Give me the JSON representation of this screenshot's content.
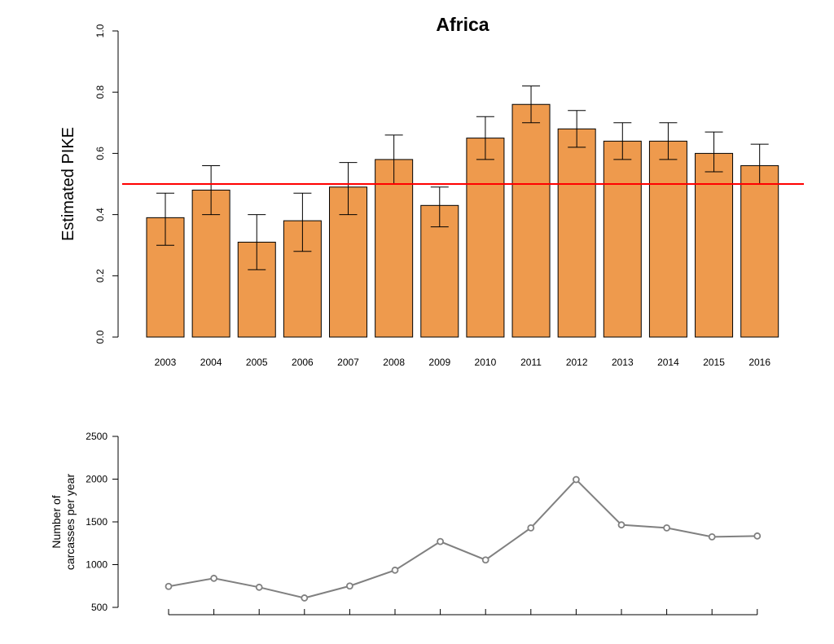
{
  "chart_data": [
    {
      "type": "bar",
      "title": "Africa",
      "xlabel": "",
      "ylabel": "Estimated PIKE",
      "ylim": [
        0,
        1
      ],
      "yticks": [
        0.0,
        0.2,
        0.4,
        0.6,
        0.8,
        1.0
      ],
      "ytick_labels": [
        "0.0",
        "0.2",
        "0.4",
        "0.6",
        "0.8",
        "1.0"
      ],
      "categories": [
        "2003",
        "2004",
        "2005",
        "2006",
        "2007",
        "2008",
        "2009",
        "2010",
        "2011",
        "2012",
        "2013",
        "2014",
        "2015",
        "2016"
      ],
      "values": [
        0.39,
        0.48,
        0.31,
        0.38,
        0.49,
        0.58,
        0.43,
        0.65,
        0.76,
        0.68,
        0.64,
        0.64,
        0.6,
        0.56
      ],
      "error_lower": [
        0.3,
        0.4,
        0.22,
        0.28,
        0.4,
        0.5,
        0.36,
        0.58,
        0.7,
        0.62,
        0.58,
        0.58,
        0.54,
        0.5
      ],
      "error_upper": [
        0.47,
        0.56,
        0.4,
        0.47,
        0.57,
        0.66,
        0.49,
        0.72,
        0.82,
        0.74,
        0.7,
        0.7,
        0.67,
        0.63
      ],
      "reference_line": 0.5,
      "colors": {
        "bar_fill": "#EE9A4D",
        "bar_stroke": "#000000",
        "reference_line": "#FF0000"
      },
      "grid": false
    },
    {
      "type": "line",
      "xlabel": "",
      "ylabel": [
        "Number of",
        "carcasses per year"
      ],
      "ylim": [
        500,
        2500
      ],
      "yticks": [
        500,
        1000,
        1500,
        2000,
        2500
      ],
      "ytick_labels": [
        "500",
        "1000",
        "1500",
        "2000",
        "2500"
      ],
      "x": [
        "2003",
        "2004",
        "2005",
        "2006",
        "2007",
        "2008",
        "2009",
        "2010",
        "2011",
        "2012",
        "2013",
        "2014",
        "2015",
        "2016"
      ],
      "values": [
        745,
        840,
        735,
        610,
        750,
        935,
        1270,
        1055,
        1430,
        1995,
        1465,
        1430,
        1325,
        1335
      ],
      "show_x_tick_labels": false,
      "colors": {
        "line": "#808080",
        "marker": "#808080"
      },
      "grid": false
    }
  ]
}
